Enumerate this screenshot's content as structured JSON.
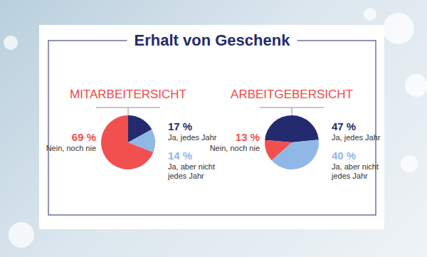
{
  "title": "Erhalt von Geschenk",
  "chart_data": [
    {
      "type": "pie",
      "title": "MITARBEITERSICHT",
      "categories": [
        "Ja, jedes Jahr",
        "Ja, aber nicht jedes Jahr",
        "Nein, noch nie"
      ],
      "values": [
        17,
        14,
        69
      ],
      "value_labels": [
        "17 %",
        "14 %",
        "69 %"
      ],
      "colors": [
        "#232b6e",
        "#8fb8e6",
        "#f24f4f"
      ],
      "data_labels": true
    },
    {
      "type": "pie",
      "title": "ARBEITGEBERSICHT",
      "categories": [
        "Ja, jedes Jahr",
        "Ja, aber nicht jedes Jahr",
        "Nein, noch nie"
      ],
      "values": [
        47,
        40,
        13
      ],
      "value_labels": [
        "47 %",
        "40 %",
        "13 %"
      ],
      "colors": [
        "#232b6e",
        "#8fb8e6",
        "#f24f4f"
      ],
      "data_labels": true
    }
  ]
}
